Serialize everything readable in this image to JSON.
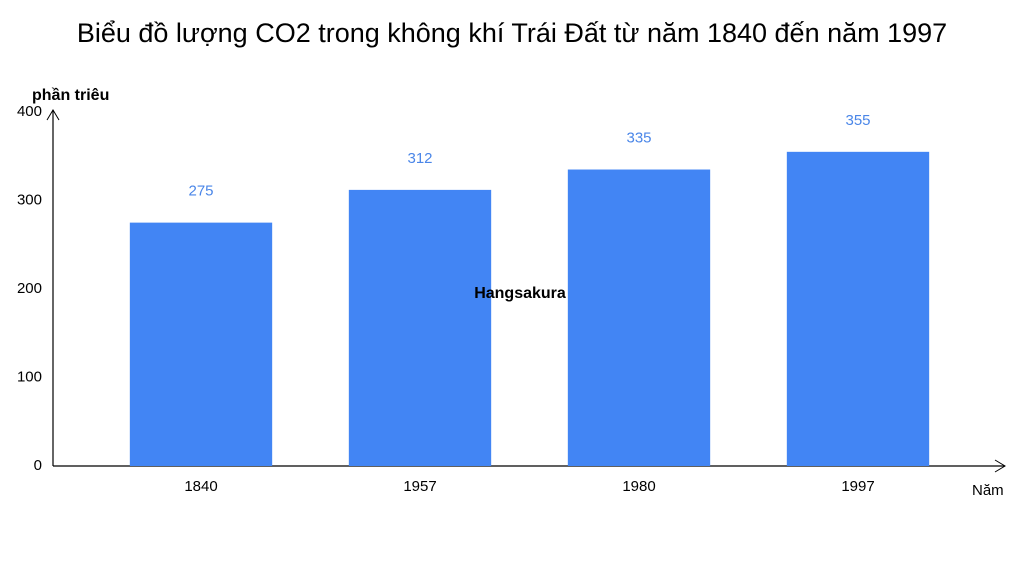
{
  "chart_data": {
    "type": "bar",
    "title": "Biểu đồ lượng CO2 trong không khí Trái Đất từ năm 1840 đến năm 1997",
    "y_label": "phần triêu",
    "x_label": "Năm",
    "annotation": "Hangsakura",
    "categories": [
      "1840",
      "1957",
      "1980",
      "1997"
    ],
    "values": [
      275,
      312,
      335,
      355
    ],
    "color": "#4285f4",
    "value_label_color": "#4a86e8",
    "ylim": [
      0,
      400
    ],
    "yticks": [
      0,
      100,
      200,
      300,
      400
    ],
    "grid": false
  }
}
